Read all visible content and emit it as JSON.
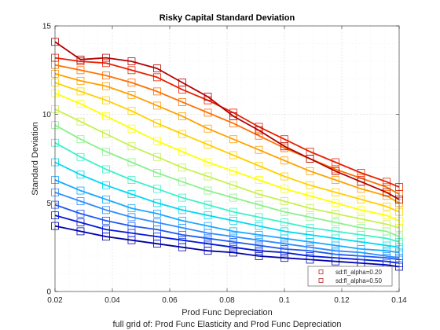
{
  "chart_data": {
    "type": "line",
    "title": "Risky Capital Standard Deviation",
    "xlabel": "Prod Func Depreciation",
    "ylabel": "Standard Deviation",
    "caption": "full grid of: Prod Func Elasticity and Prod Func Depreciation",
    "xlim": [
      0.02,
      0.14
    ],
    "ylim": [
      0,
      15
    ],
    "xticks": [
      0.02,
      0.04,
      0.06,
      0.08,
      0.1,
      0.12,
      0.14
    ],
    "xtick_labels": [
      "0.02",
      "0.04",
      "0.06",
      "0.08",
      "0.1",
      "0.12",
      "0.14"
    ],
    "yticks": [
      0,
      5,
      10,
      15
    ],
    "ytick_labels": [
      "0",
      "5",
      "10",
      "15"
    ],
    "grid": true,
    "legend_placement": "bottom-right",
    "legend": [
      {
        "label": "sd:fl_alpha=0.20",
        "color": "#b30000"
      },
      {
        "label": "sd:fl_alpha=0.50",
        "color": "#b30000"
      }
    ],
    "x": [
      0.02,
      0.0289,
      0.0378,
      0.0467,
      0.0556,
      0.0644,
      0.0733,
      0.0822,
      0.0911,
      0.1,
      0.1089,
      0.1178,
      0.1267,
      0.1356,
      0.14
    ],
    "series": [
      {
        "color": "#0000a8",
        "values": [
          3.7,
          3.4,
          3.1,
          2.9,
          2.7,
          2.5,
          2.3,
          2.2,
          2.0,
          1.9,
          1.8,
          1.7,
          1.6,
          1.5,
          1.4
        ]
      },
      {
        "color": "#0018d8",
        "values": [
          4.3,
          3.9,
          3.5,
          3.3,
          3.1,
          2.9,
          2.7,
          2.5,
          2.3,
          2.2,
          2.0,
          1.9,
          1.8,
          1.7,
          1.6
        ]
      },
      {
        "color": "#1f58f0",
        "values": [
          4.9,
          4.4,
          4.0,
          3.7,
          3.5,
          3.2,
          3.0,
          2.8,
          2.6,
          2.4,
          2.3,
          2.1,
          2.0,
          1.9,
          1.8
        ]
      },
      {
        "color": "#2f8cff",
        "values": [
          5.6,
          5.1,
          4.6,
          4.2,
          3.9,
          3.6,
          3.3,
          3.1,
          2.9,
          2.7,
          2.5,
          2.3,
          2.2,
          2.0,
          1.9
        ]
      },
      {
        "color": "#1aa8ff",
        "values": [
          6.3,
          5.7,
          5.2,
          4.7,
          4.4,
          4.0,
          3.7,
          3.4,
          3.2,
          3.0,
          2.8,
          2.6,
          2.4,
          2.3,
          2.2
        ]
      },
      {
        "color": "#00d8f0",
        "values": [
          7.3,
          6.6,
          6.0,
          5.5,
          5.0,
          4.6,
          4.3,
          4.0,
          3.7,
          3.4,
          3.2,
          3.0,
          2.8,
          2.6,
          2.5
        ]
      },
      {
        "color": "#3ff0c8",
        "values": [
          8.4,
          7.6,
          6.9,
          6.3,
          5.8,
          5.3,
          4.9,
          4.5,
          4.2,
          3.9,
          3.6,
          3.4,
          3.2,
          3.0,
          2.8
        ]
      },
      {
        "color": "#8cf08c",
        "values": [
          9.4,
          8.6,
          7.9,
          7.3,
          6.7,
          6.2,
          5.7,
          5.3,
          4.9,
          4.5,
          4.2,
          3.9,
          3.6,
          3.4,
          3.1
        ]
      },
      {
        "color": "#c8f050",
        "values": [
          10.3,
          9.6,
          8.9,
          8.2,
          7.6,
          7.0,
          6.5,
          6.0,
          5.5,
          5.1,
          4.7,
          4.4,
          4.1,
          3.8,
          3.6
        ]
      },
      {
        "color": "#ffff00",
        "values": [
          11.2,
          10.6,
          9.9,
          9.2,
          8.5,
          7.9,
          7.3,
          6.8,
          6.3,
          5.8,
          5.4,
          5.0,
          4.6,
          4.3,
          4.0
        ]
      },
      {
        "color": "#ffd000",
        "values": [
          11.8,
          11.3,
          10.8,
          10.2,
          9.5,
          8.9,
          8.3,
          7.7,
          7.1,
          6.5,
          6.0,
          5.6,
          5.2,
          4.8,
          4.5
        ]
      },
      {
        "color": "#ffa000",
        "values": [
          12.3,
          11.9,
          11.6,
          11.1,
          10.5,
          9.9,
          9.2,
          8.6,
          8.0,
          7.4,
          6.8,
          6.3,
          5.8,
          5.4,
          5.0
        ]
      },
      {
        "color": "#ff7000",
        "values": [
          12.8,
          12.5,
          12.2,
          11.8,
          11.3,
          10.7,
          10.1,
          9.5,
          8.8,
          8.1,
          7.5,
          6.9,
          6.4,
          5.9,
          5.5
        ]
      },
      {
        "color": "#e82000",
        "values": [
          13.2,
          13.0,
          12.9,
          12.5,
          12.1,
          11.4,
          10.8,
          10.1,
          9.3,
          8.6,
          7.9,
          7.3,
          6.7,
          6.2,
          5.9
        ]
      },
      {
        "color": "#b30000",
        "values": [
          14.1,
          13.1,
          13.2,
          13.0,
          12.6,
          11.8,
          11.0,
          9.9,
          9.1,
          8.2,
          7.5,
          6.8,
          6.2,
          5.6,
          5.2
        ]
      }
    ]
  }
}
